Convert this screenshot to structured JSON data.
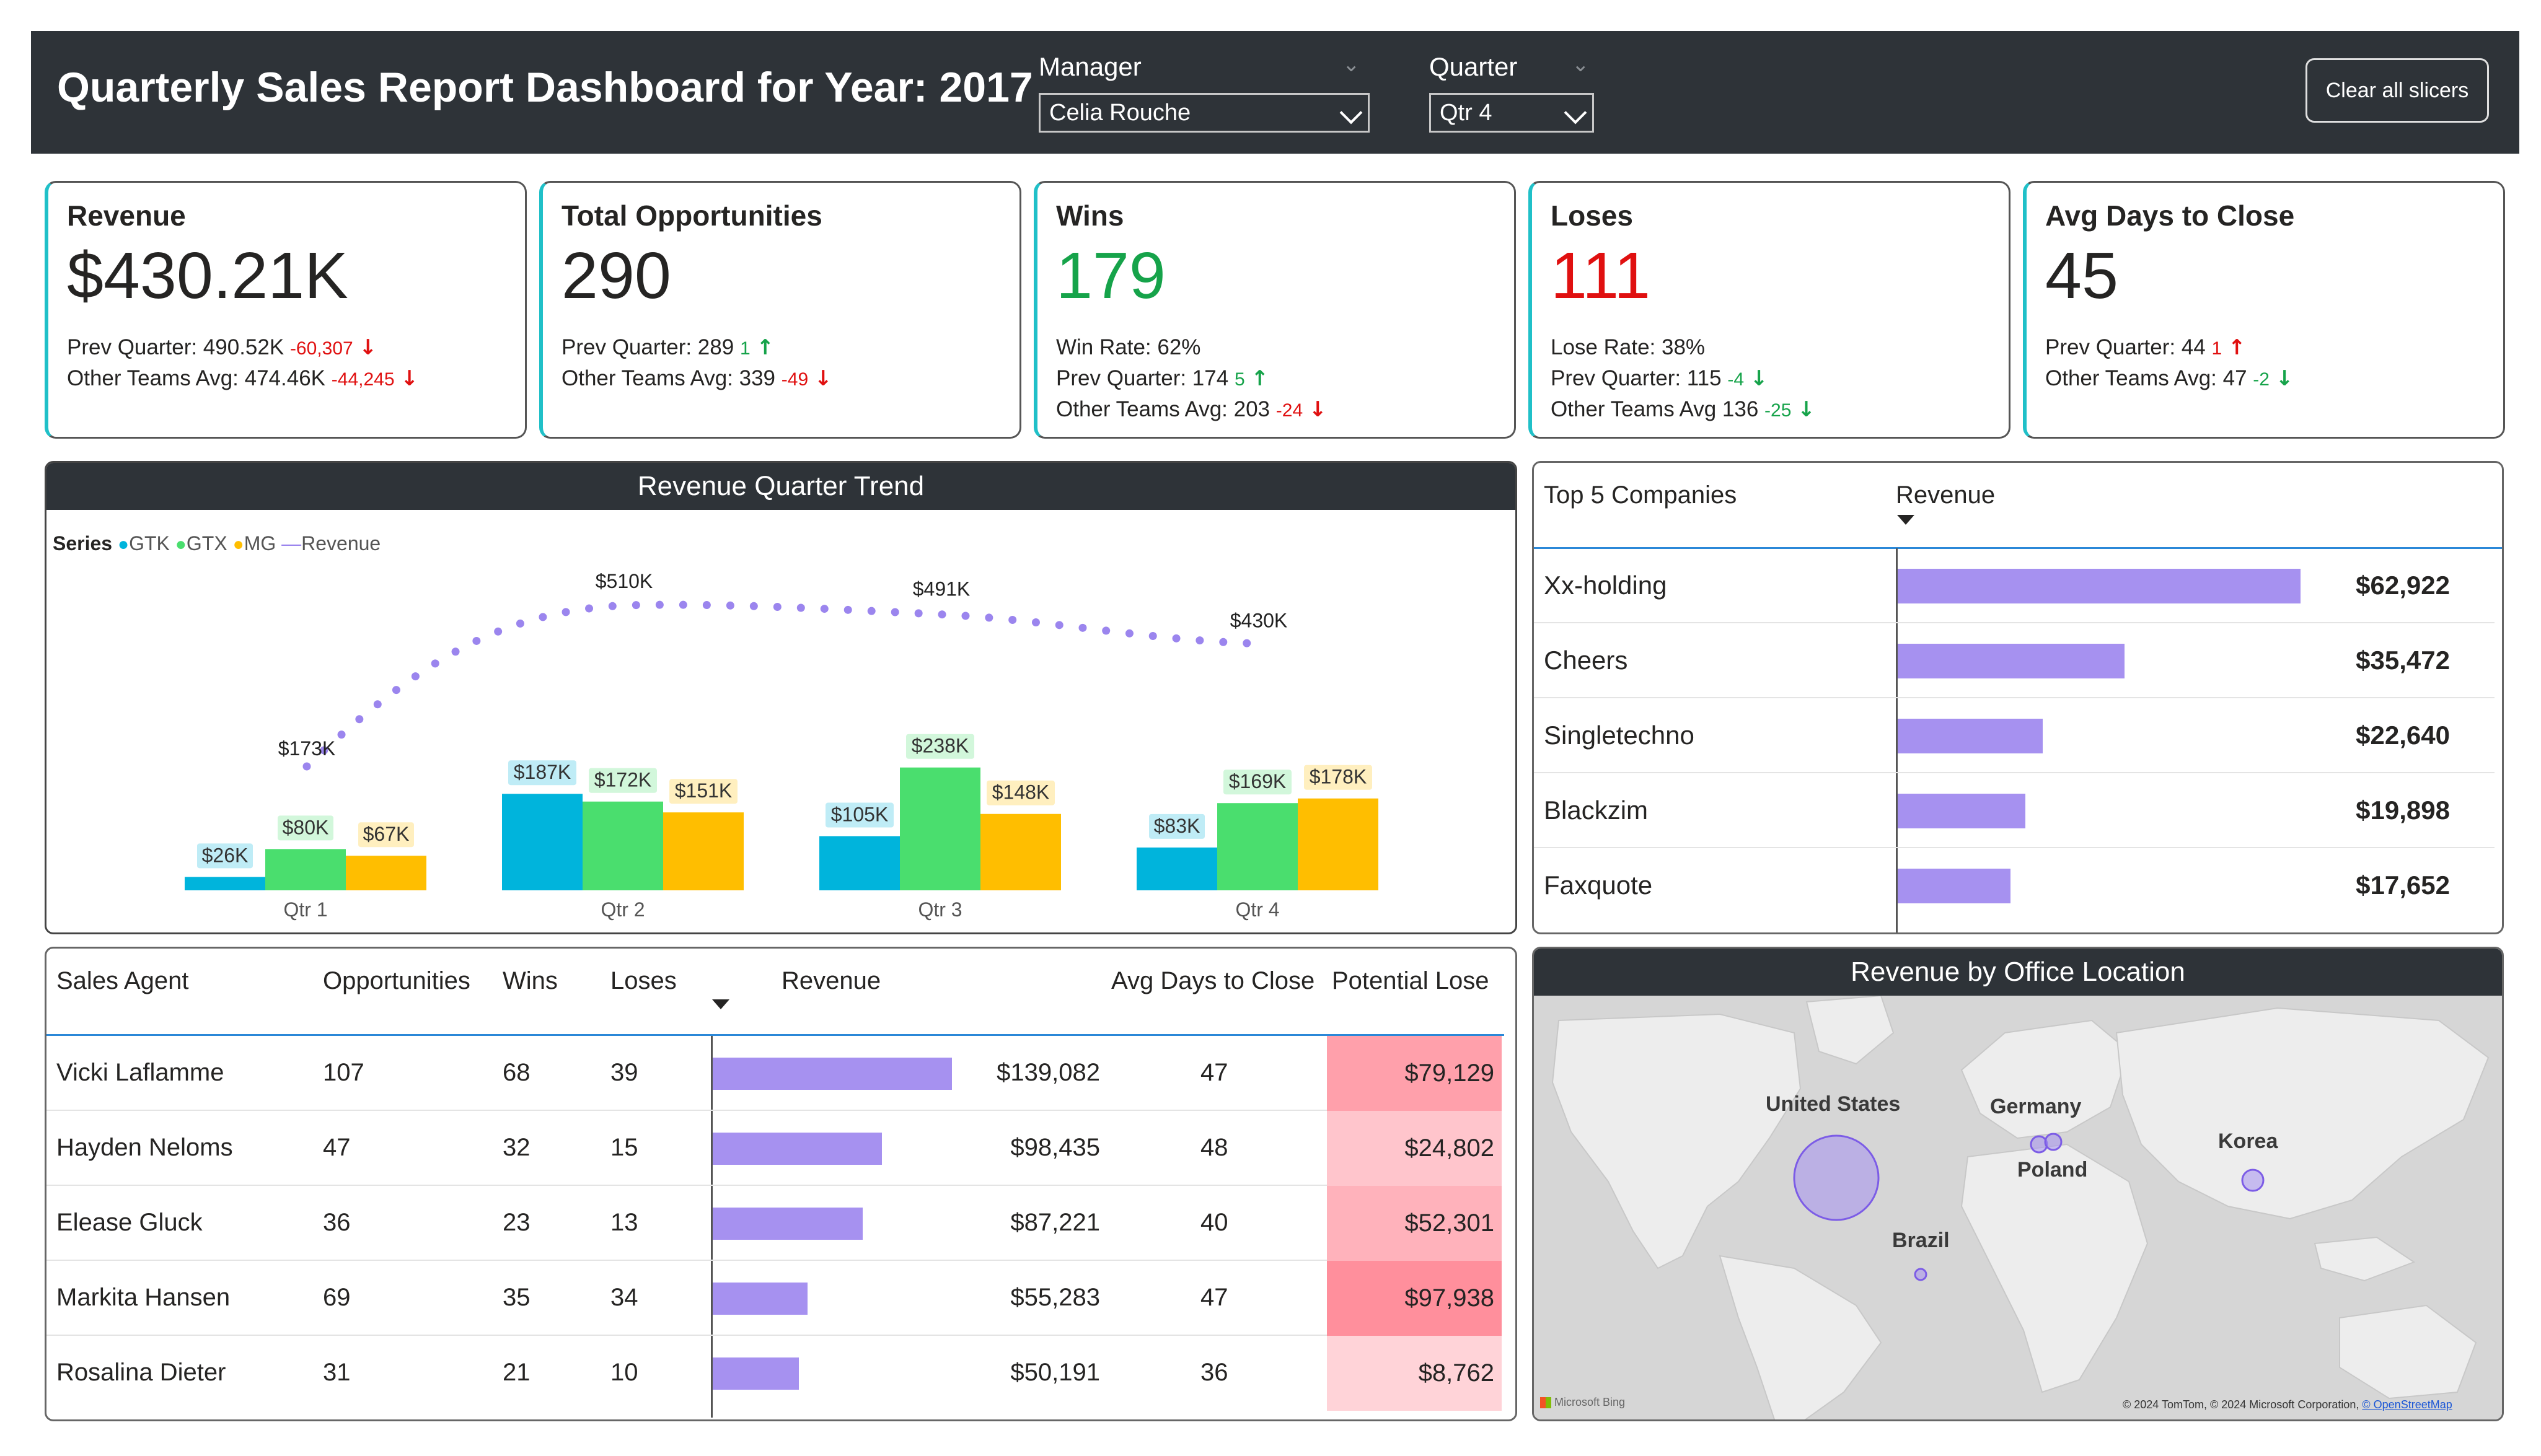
{
  "header": {
    "title": "Quarterly Sales Report Dashboard for Year: 2017",
    "manager_label": "Manager",
    "manager_value": "Celia Rouche",
    "quarter_label": "Quarter",
    "quarter_value": "Qtr 4",
    "clear_button": "Clear all slicers"
  },
  "kpis": {
    "revenue": {
      "title": "Revenue",
      "value": "$430.21K",
      "line1_label": "Prev Quarter: 490.52K",
      "line1_delta": "-60,307",
      "line2_label": "Other Teams Avg: 474.46K",
      "line2_delta": "-44,245"
    },
    "opportunities": {
      "title": "Total Opportunities",
      "value": "290",
      "line1_label": "Prev Quarter: 289",
      "line1_delta": "1",
      "line2_label": "Other Teams Avg: 339",
      "line2_delta": "-49"
    },
    "wins": {
      "title": "Wins",
      "value": "179",
      "line1_label": "Win Rate: 62%",
      "line2_label": "Prev Quarter: 174",
      "line2_delta": "5",
      "line3_label": "Other Teams Avg: 203",
      "line3_delta": "-24"
    },
    "loses": {
      "title": "Loses",
      "value": "111",
      "line1_label": "Lose Rate: 38%",
      "line2_label": "Prev Quarter: 115",
      "line2_delta": "-4",
      "line3_label": "Other Teams Avg 136",
      "line3_delta": "-25"
    },
    "avg_days": {
      "title": "Avg Days to Close",
      "value": "45",
      "line1_label": "Prev Quarter: 44",
      "line1_delta": "1",
      "line2_label": "Other Teams Avg: 47",
      "line2_delta": "-2"
    }
  },
  "trend": {
    "title": "Revenue Quarter Trend",
    "legend_title": "Series",
    "legend": [
      "GTK",
      "GTX",
      "MG",
      "Revenue"
    ]
  },
  "chart_data": {
    "type": "bar",
    "title": "Revenue Quarter Trend",
    "categories": [
      "Qtr 1",
      "Qtr 2",
      "Qtr 3",
      "Qtr 4"
    ],
    "series": [
      {
        "name": "GTK",
        "values": [
          26,
          187,
          105,
          83
        ],
        "labels": [
          "$26K",
          "$187K",
          "$105K",
          "$83K"
        ],
        "color": "#00b4dc"
      },
      {
        "name": "GTX",
        "values": [
          80,
          172,
          238,
          169
        ],
        "labels": [
          "$80K",
          "$172K",
          "$238K",
          "$169K"
        ],
        "color": "#4ade6e"
      },
      {
        "name": "MG",
        "values": [
          67,
          151,
          148,
          178
        ],
        "labels": [
          "$67K",
          "$151K",
          "$148K",
          "$178K"
        ],
        "color": "#ffbe00"
      }
    ],
    "line": {
      "name": "Revenue",
      "values": [
        173,
        510,
        491,
        430
      ],
      "labels": [
        "$173K",
        "$510K",
        "$491K",
        "$430K"
      ],
      "color": "#9b85ee"
    },
    "ylim": [
      0,
      600
    ]
  },
  "top5": {
    "title": "Top 5 Companies",
    "col_revenue": "Revenue",
    "max": 62922,
    "rows": [
      {
        "name": "Xx-holding",
        "revenue": "$62,922",
        "value": 62922
      },
      {
        "name": "Cheers",
        "revenue": "$35,472",
        "value": 35472
      },
      {
        "name": "Singletechno",
        "revenue": "$22,640",
        "value": 22640
      },
      {
        "name": "Blackzim",
        "revenue": "$19,898",
        "value": 19898
      },
      {
        "name": "Faxquote",
        "revenue": "$17,652",
        "value": 17652
      }
    ]
  },
  "agents": {
    "headers": {
      "agent": "Sales Agent",
      "opportunities": "Opportunities",
      "wins": "Wins",
      "loses": "Loses",
      "revenue": "Revenue",
      "avg_days": "Avg Days to Close",
      "potential_lose": "Potential Lose"
    },
    "max_revenue": 139082,
    "rows": [
      {
        "agent": "Vicki Laflamme",
        "opportunities": "107",
        "wins": "68",
        "loses": "39",
        "revenue": "$139,082",
        "value": 139082,
        "avg_days": "47",
        "potential_lose": "$79,129",
        "lose_color": "#ffa0ab"
      },
      {
        "agent": "Hayden Neloms",
        "opportunities": "47",
        "wins": "32",
        "loses": "15",
        "revenue": "$98,435",
        "value": 98435,
        "avg_days": "48",
        "potential_lose": "$24,802",
        "lose_color": "#ffc5cc"
      },
      {
        "agent": "Elease Gluck",
        "opportunities": "36",
        "wins": "23",
        "loses": "13",
        "revenue": "$87,221",
        "value": 87221,
        "avg_days": "40",
        "potential_lose": "$52,301",
        "lose_color": "#ffb2bb"
      },
      {
        "agent": "Markita Hansen",
        "opportunities": "69",
        "wins": "35",
        "loses": "34",
        "revenue": "$55,283",
        "value": 55283,
        "avg_days": "47",
        "potential_lose": "$97,938",
        "lose_color": "#ff8f9c"
      },
      {
        "agent": "Rosalina Dieter",
        "opportunities": "31",
        "wins": "21",
        "loses": "10",
        "revenue": "$50,191",
        "value": 50191,
        "avg_days": "36",
        "potential_lose": "$8,762",
        "lose_color": "#ffd3d8"
      }
    ]
  },
  "map": {
    "title": "Revenue by Office Location",
    "locations": [
      "United States",
      "Germany",
      "Poland",
      "Korea",
      "Brazil"
    ],
    "bing": "Microsoft Bing",
    "copyright": "© 2024 TomTom, © 2024 Microsoft Corporation,",
    "osm": "© OpenStreetMap"
  },
  "colors": {
    "accent": "#20c0c8",
    "header_bg": "#2e3338",
    "bar": "#a691f0",
    "red": "#e01010",
    "green": "#16a34a"
  }
}
